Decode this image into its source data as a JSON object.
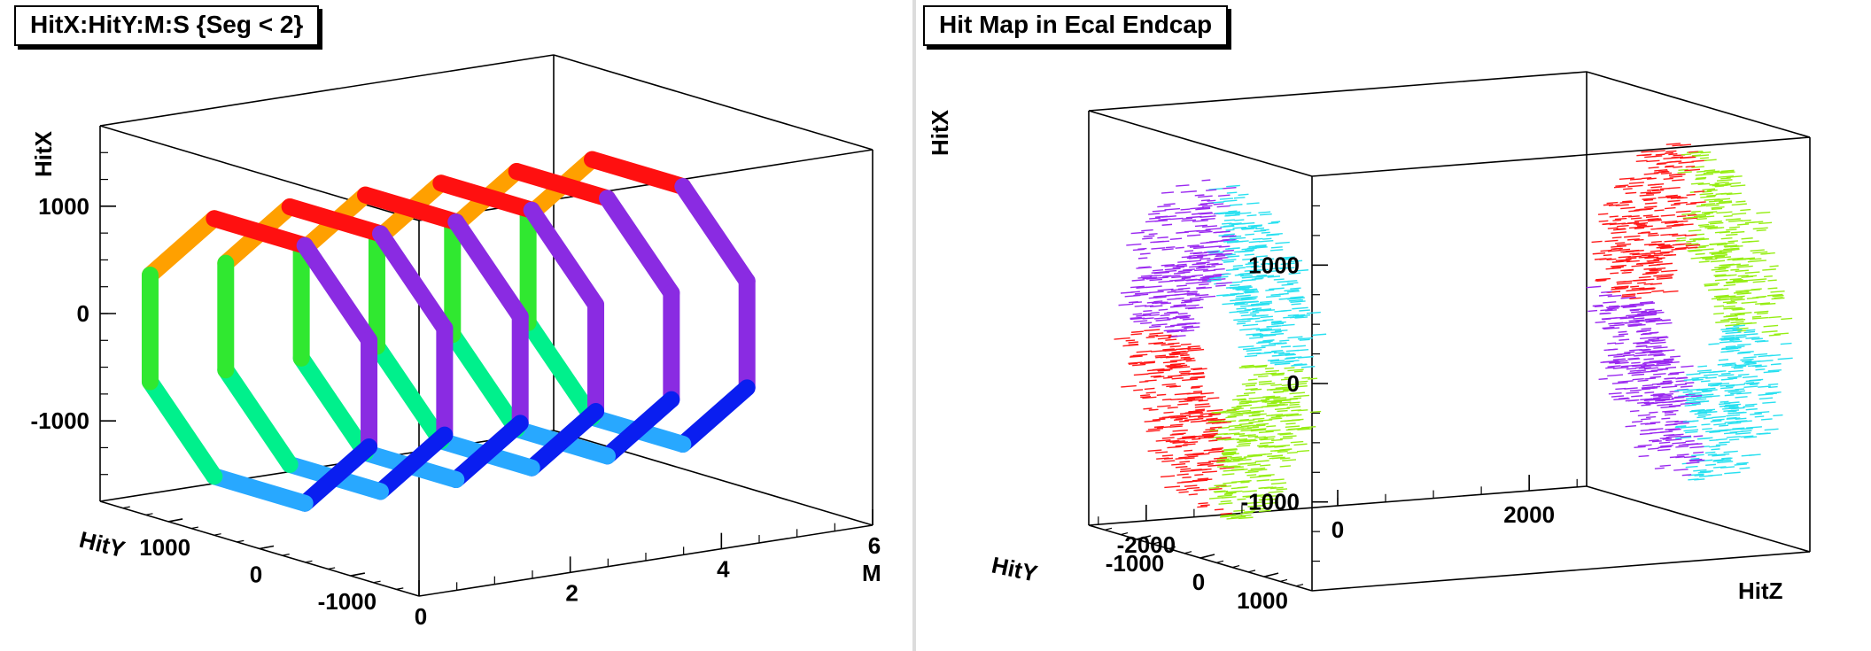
{
  "panels": [
    {
      "title": "HitX:HitY:M:S {Seg < 2}",
      "chart_data": {
        "type": "scatter",
        "projection": "3d",
        "title": "HitX:HitY:M:S {Seg < 2}",
        "axes": {
          "x": {
            "label": "M",
            "ticks": [
              "0",
              "2",
              "4",
              "6"
            ],
            "range": [
              0,
              6
            ]
          },
          "y": {
            "label": "HitY",
            "ticks": [
              "1000",
              "0",
              "-1000"
            ],
            "range": [
              -1750,
              1750
            ]
          },
          "z": {
            "label": "HitX",
            "ticks": [
              "1000",
              "0",
              "-1000"
            ],
            "range": [
              -1750,
              1750
            ]
          }
        },
        "color_axis": "S",
        "description_values": {
          "M_values": [
            0,
            1,
            2,
            3,
            4,
            5
          ],
          "S_colors": [
            "#8a2be2",
            "#0a1ef0",
            "#28a8ff",
            "#00f08c",
            "#30e830",
            "#a6f520",
            "#ffa000",
            "#ff1010"
          ]
        },
        "grid": false
      }
    },
    {
      "title": "Hit Map in Ecal Endcap",
      "chart_data": {
        "type": "scatter",
        "projection": "3d",
        "title": "Hit Map in Ecal Endcap",
        "axes": {
          "x": {
            "label": "HitZ",
            "ticks": [
              "-2000",
              "0",
              "2000"
            ],
            "range": [
              -2600,
              2600
            ]
          },
          "y": {
            "label": "HitY",
            "ticks": [
              "1000",
              "0",
              "-1000"
            ],
            "range": [
              -1750,
              1750
            ]
          },
          "z": {
            "label": "HitX",
            "ticks": [
              "1000",
              "0",
              "-1000"
            ],
            "range": [
              -1750,
              1750
            ]
          }
        },
        "description_values": {
          "endcaps_z": [
            -2450,
            2450
          ],
          "quadrant_colors": [
            "#9a28f0",
            "#28e0f0",
            "#96ee14",
            "#ff1818"
          ]
        },
        "grid": false
      }
    }
  ]
}
